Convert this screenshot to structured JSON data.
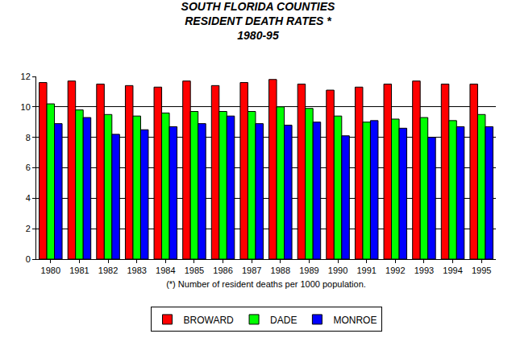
{
  "chart_data": {
    "type": "bar",
    "title": [
      "SOUTH FLORIDA COUNTIES",
      "RESIDENT DEATH RATES *",
      "1980-95"
    ],
    "x_label": "(*) Number of resident deaths per 1000 population.",
    "categories": [
      "1980",
      "1981",
      "1982",
      "1983",
      "1984",
      "1985",
      "1986",
      "1987",
      "1988",
      "1989",
      "1990",
      "1991",
      "1992",
      "1993",
      "1994",
      "1995"
    ],
    "series": [
      {
        "name": "BROWARD",
        "color": "#ff0000",
        "values": [
          11.6,
          11.7,
          11.5,
          11.4,
          11.3,
          11.7,
          11.4,
          11.6,
          11.8,
          11.5,
          11.1,
          11.3,
          11.5,
          11.7,
          11.5,
          11.5
        ]
      },
      {
        "name": "DADE",
        "color": "#00ff00",
        "values": [
          10.2,
          9.8,
          9.5,
          9.4,
          9.6,
          9.7,
          9.7,
          9.7,
          10.0,
          9.9,
          9.4,
          9.0,
          9.2,
          9.3,
          9.1,
          9.5
        ]
      },
      {
        "name": "MONROE",
        "color": "#0000ff",
        "values": [
          8.9,
          9.3,
          8.2,
          8.5,
          8.7,
          8.9,
          9.4,
          8.9,
          8.8,
          9.0,
          8.1,
          9.1,
          8.6,
          8.0,
          8.7,
          8.7
        ]
      }
    ],
    "ylim": [
      0,
      12
    ],
    "yticks": [
      0,
      2,
      4,
      6,
      8,
      10,
      12
    ],
    "grid": true,
    "legend": "bottom"
  }
}
